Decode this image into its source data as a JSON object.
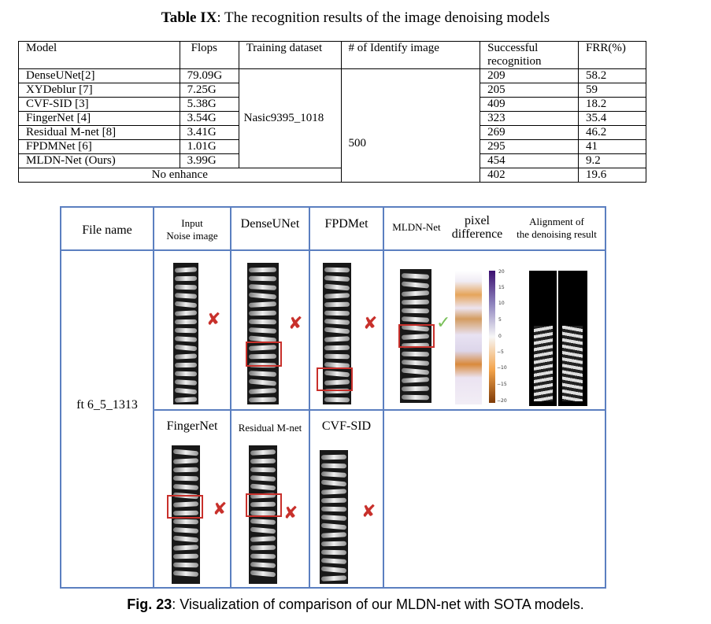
{
  "table": {
    "label": "Table IX",
    "title": ": The recognition results of the image denoising models",
    "headers": [
      "Model",
      "Flops",
      "Training dataset",
      "# of Identify image",
      "Successful recognition",
      "FRR(%)"
    ],
    "rows": [
      {
        "model": "DenseUNet[2]",
        "flops": "79.09G",
        "success": "209",
        "frr": "58.2"
      },
      {
        "model": "XYDeblur [7]",
        "flops": "7.25G",
        "success": "205",
        "frr": "59"
      },
      {
        "model": "CVF-SID [3]",
        "flops": "5.38G",
        "success": "409",
        "frr": "18.2"
      },
      {
        "model": "FingerNet [4]",
        "flops": "3.54G",
        "success": "323",
        "frr": "35.4"
      },
      {
        "model": "Residual M-net [8]",
        "flops": "3.41G",
        "success": "269",
        "frr": "46.2"
      },
      {
        "model": "FPDMNet [6]",
        "flops": "1.01G",
        "success": "295",
        "frr": "41"
      },
      {
        "model": "MLDN-Net (Ours)",
        "flops": "3.99G",
        "success": "454",
        "frr": "9.2"
      }
    ],
    "training_dataset": "Nasic9395_1018",
    "identify_count": "500",
    "baseline": {
      "label": "No enhance",
      "success": "402",
      "frr": "19.6"
    }
  },
  "figure": {
    "headers": {
      "file_name": "File name",
      "input_line1": "Input",
      "input_line2": "Noise image",
      "denseunet": "DenseUNet",
      "fpdmet": "FPDMet",
      "mldn": "MLDN-Net",
      "pixel_line1": "pixel",
      "pixel_line2": "difference",
      "align_line1": "Alignment of",
      "align_line2": "the denoising result",
      "fingernet": "FingerNet",
      "residual": "Residual M-net",
      "cvfsid": "CVF-SID"
    },
    "file_id": "ft 6_5_1313",
    "colorbar_ticks": [
      "20",
      "15",
      "10",
      "5",
      "0",
      "−5",
      "−10",
      "−15",
      "−20"
    ],
    "colors": {
      "grid": "#5b7fc0",
      "fail_mark": "#c8302b",
      "pass_mark": "#7ac05a"
    },
    "mark_fail": "✘",
    "mark_pass": "✓",
    "results": {
      "input": "fail",
      "denseunet": "fail",
      "fpdmet": "fail",
      "mldn": "pass",
      "fingernet": "fail",
      "residual": "fail",
      "cvfsid": "fail"
    },
    "caption_label": "Fig. 23",
    "caption_text": ": Visualization of comparison of our MLDN-net with SOTA models."
  }
}
